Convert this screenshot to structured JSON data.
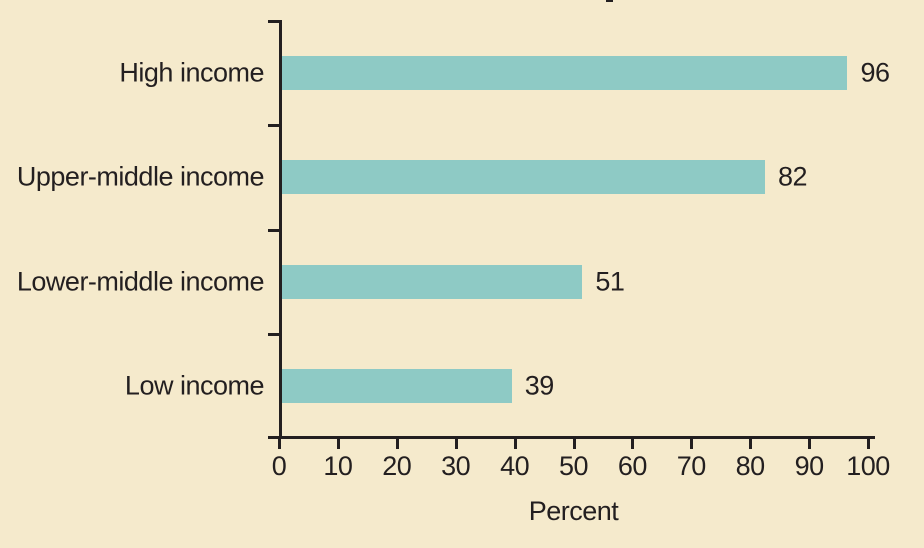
{
  "chart_data": {
    "type": "bar",
    "orientation": "horizontal",
    "categories": [
      "High income",
      "Upper-middle income",
      "Lower-middle income",
      "Low income"
    ],
    "values": [
      96,
      82,
      51,
      39
    ],
    "value_labels": [
      "96",
      "82",
      "51",
      "39"
    ],
    "xlabel": "Percent",
    "xlim": [
      0,
      100
    ],
    "xticks": [
      0,
      10,
      20,
      30,
      40,
      50,
      60,
      70,
      80,
      90,
      100
    ],
    "grid": false,
    "legend": false,
    "colors": {
      "bar": "#8ecac5",
      "background": "#f5eacc",
      "axis": "#231f20",
      "text": "#231f20"
    }
  }
}
